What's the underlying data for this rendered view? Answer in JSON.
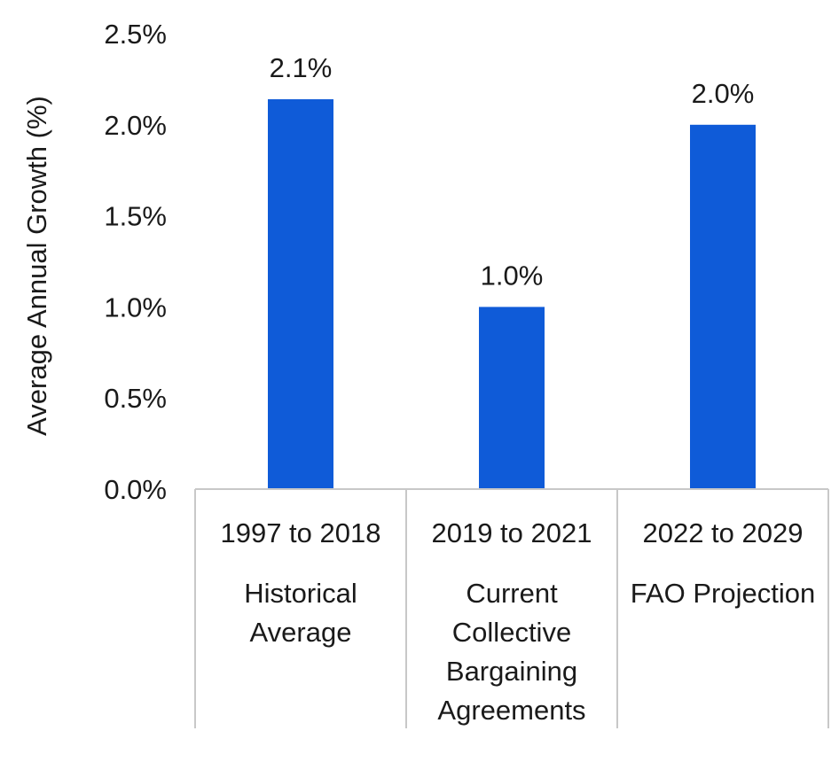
{
  "chart_data": {
    "type": "bar",
    "title": "",
    "xlabel": "",
    "ylabel": "Average Annual Growth (%)",
    "ylim": [
      0,
      2.5
    ],
    "yticks": [
      "0.0%",
      "0.5%",
      "1.0%",
      "1.5%",
      "2.0%",
      "2.5%"
    ],
    "ytick_values": [
      0,
      0.5,
      1.0,
      1.5,
      2.0,
      2.5
    ],
    "grid": false,
    "bar_color": "#0f5bd8",
    "categories": [
      {
        "period": "1997 to 2018",
        "description": [
          "Historical",
          "Average"
        ]
      },
      {
        "period": "2019 to 2021",
        "description": [
          "Current",
          "Collective",
          "Bargaining",
          "Agreements"
        ]
      },
      {
        "period": "2022 to 2029",
        "description": [
          "FAO Projection"
        ]
      }
    ],
    "values": [
      2.14,
      1.0,
      2.0
    ],
    "data_labels": [
      "2.1%",
      "1.0%",
      "2.0%"
    ]
  }
}
